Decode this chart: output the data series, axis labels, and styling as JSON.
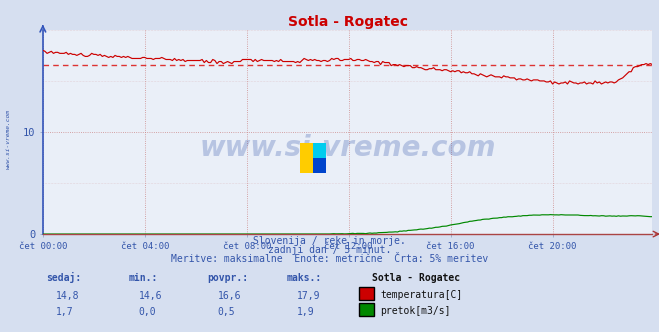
{
  "title": "Sotla - Rogatec",
  "bg_color": "#d6dff0",
  "plot_bg_color": "#eaeff8",
  "grid_v_color": "#cc8888",
  "grid_h_color": "#cc8888",
  "x_ticks_labels": [
    "čet 00:00",
    "čet 04:00",
    "čet 08:00",
    "čet 12:00",
    "čet 16:00",
    "čet 20:00"
  ],
  "x_ticks_pos": [
    0,
    48,
    96,
    144,
    192,
    240
  ],
  "y_ticks": [
    0,
    10
  ],
  "ylim": [
    0,
    20
  ],
  "xlim": [
    0,
    287
  ],
  "temp_color": "#cc0000",
  "flow_color": "#008800",
  "avg_line_color": "#dd3333",
  "avg_temp": 16.6,
  "text_color": "#3355aa",
  "subtitle1": "Slovenija / reke in morje.",
  "subtitle2": "zadnji dan / 5 minut.",
  "subtitle3": "Meritve: maksimalne  Enote: metrične  Črta: 5% meritev",
  "footer_col1_label": "sedaj:",
  "footer_col2_label": "min.:",
  "footer_col3_label": "povpr.:",
  "footer_col4_label": "maks.:",
  "footer_col5_label": "Sotla - Rogatec",
  "temp_row": [
    "14,8",
    "14,6",
    "16,6",
    "17,9"
  ],
  "flow_row": [
    "1,7",
    "0,0",
    "0,5",
    "1,9"
  ],
  "temp_label": "temperatura[C]",
  "flow_label": "pretok[m3/s]",
  "watermark": "www.si-vreme.com",
  "left_label": "www.si-vreme.com",
  "n_points": 288,
  "spine_color": "#8899bb",
  "axis_color": "#3355bb"
}
